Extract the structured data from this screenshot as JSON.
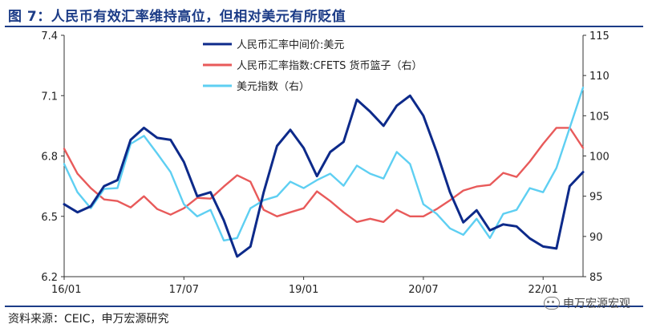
{
  "title": "图 7：人民币有效汇率维持高位，但相对美元有所贬值",
  "source": "资料来源：CEIC，申万宏源研究",
  "watermark": "申万宏源宏观",
  "colors": {
    "usdcny": "#0d2a8a",
    "cfets": "#e85a5a",
    "dxy": "#5ecff2",
    "title": "#1c3c87"
  },
  "chart_data": {
    "type": "line",
    "x_start": "2016-01",
    "x_end": "2022-07",
    "x_ticks": [
      "16/01",
      "17/07",
      "19/01",
      "20/07",
      "22/01"
    ],
    "x_tick_positions": [
      "2016-01",
      "2017-07",
      "2019-01",
      "2020-07",
      "2022-01"
    ],
    "y_left": {
      "ticks": [
        "6.2",
        "6.5",
        "6.8",
        "7.1",
        "7.4"
      ],
      "lim": [
        6.2,
        7.4
      ]
    },
    "y_right": {
      "ticks": [
        "85",
        "90",
        "95",
        "100",
        "105",
        "110",
        "115"
      ],
      "lim": [
        85,
        115
      ]
    },
    "grid": false,
    "legend_position": "top-center",
    "series": [
      {
        "name": "人民币汇率中间价:美元",
        "axis": "left",
        "color": "#0d2a8a",
        "x": [
          "2016-01",
          "2016-03",
          "2016-05",
          "2016-07",
          "2016-09",
          "2016-11",
          "2017-01",
          "2017-03",
          "2017-05",
          "2017-07",
          "2017-09",
          "2017-11",
          "2018-01",
          "2018-03",
          "2018-05",
          "2018-07",
          "2018-09",
          "2018-11",
          "2019-01",
          "2019-03",
          "2019-05",
          "2019-07",
          "2019-09",
          "2019-11",
          "2020-01",
          "2020-03",
          "2020-05",
          "2020-07",
          "2020-09",
          "2020-11",
          "2021-01",
          "2021-03",
          "2021-05",
          "2021-07",
          "2021-09",
          "2021-11",
          "2022-01",
          "2022-03",
          "2022-05",
          "2022-07"
        ],
        "y": [
          6.56,
          6.52,
          6.55,
          6.65,
          6.68,
          6.88,
          6.94,
          6.89,
          6.88,
          6.77,
          6.6,
          6.62,
          6.48,
          6.3,
          6.35,
          6.62,
          6.85,
          6.93,
          6.84,
          6.7,
          6.82,
          6.87,
          7.08,
          7.02,
          6.95,
          7.05,
          7.1,
          7.0,
          6.82,
          6.62,
          6.47,
          6.53,
          6.43,
          6.46,
          6.45,
          6.39,
          6.35,
          6.34,
          6.65,
          6.72
        ]
      },
      {
        "name": "人民币汇率指数:CFETS 货币篮子（右）",
        "axis": "right",
        "color": "#e85a5a",
        "x": [
          "2016-01",
          "2016-03",
          "2016-05",
          "2016-07",
          "2016-09",
          "2016-11",
          "2017-01",
          "2017-03",
          "2017-05",
          "2017-07",
          "2017-09",
          "2017-11",
          "2018-01",
          "2018-03",
          "2018-05",
          "2018-07",
          "2018-09",
          "2018-11",
          "2019-01",
          "2019-03",
          "2019-05",
          "2019-07",
          "2019-09",
          "2019-11",
          "2020-01",
          "2020-03",
          "2020-05",
          "2020-07",
          "2020-09",
          "2020-11",
          "2021-01",
          "2021-03",
          "2021-05",
          "2021-07",
          "2021-09",
          "2021-11",
          "2022-01",
          "2022-03",
          "2022-05",
          "2022-07"
        ],
        "y": [
          100.9,
          97.8,
          96.0,
          94.6,
          94.4,
          93.6,
          95.0,
          93.4,
          92.7,
          93.5,
          94.8,
          94.7,
          96.2,
          97.6,
          96.8,
          93.3,
          92.5,
          93.0,
          93.5,
          95.6,
          94.4,
          93.0,
          91.8,
          92.2,
          91.8,
          93.3,
          92.5,
          92.5,
          93.4,
          94.5,
          95.7,
          96.2,
          96.4,
          97.9,
          97.4,
          99.3,
          101.5,
          103.5,
          103.5,
          101.0
        ]
      },
      {
        "name": "美元指数（右）",
        "axis": "right",
        "color": "#5ecff2",
        "x": [
          "2016-01",
          "2016-03",
          "2016-05",
          "2016-07",
          "2016-09",
          "2016-11",
          "2017-01",
          "2017-03",
          "2017-05",
          "2017-07",
          "2017-09",
          "2017-11",
          "2018-01",
          "2018-03",
          "2018-05",
          "2018-07",
          "2018-09",
          "2018-11",
          "2019-01",
          "2019-03",
          "2019-05",
          "2019-07",
          "2019-09",
          "2019-11",
          "2020-01",
          "2020-03",
          "2020-05",
          "2020-07",
          "2020-09",
          "2020-11",
          "2021-01",
          "2021-03",
          "2021-05",
          "2021-07",
          "2021-09",
          "2021-11",
          "2022-01",
          "2022-03",
          "2022-05",
          "2022-07"
        ],
        "y": [
          99.0,
          95.5,
          93.5,
          95.9,
          96.0,
          101.5,
          102.5,
          100.3,
          98.0,
          94.0,
          92.5,
          93.3,
          89.5,
          89.8,
          93.5,
          94.5,
          95.0,
          96.8,
          96.0,
          97.0,
          97.8,
          96.3,
          98.8,
          97.8,
          97.2,
          100.5,
          99.0,
          94.0,
          92.8,
          91.0,
          90.2,
          92.2,
          89.8,
          92.8,
          93.3,
          96.0,
          95.5,
          98.5,
          103.5,
          108.5
        ]
      }
    ]
  }
}
